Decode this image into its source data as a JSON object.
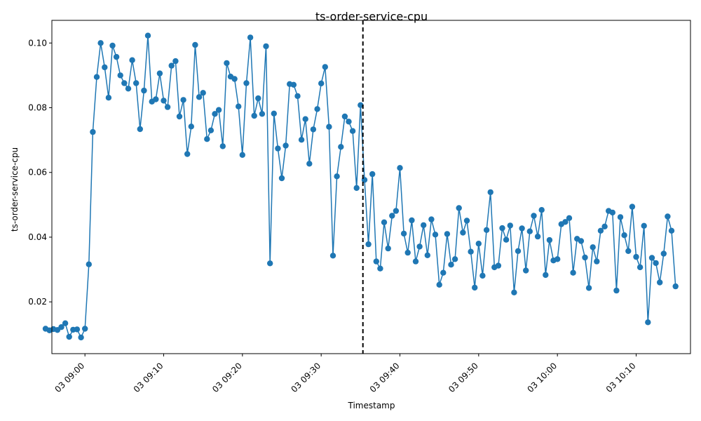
{
  "chart_data": {
    "type": "line",
    "title": "ts-order-service-cpu",
    "xlabel": "Timestamp",
    "ylabel": "ts-order-service-cpu",
    "series_color": "#1f77b4",
    "marker": "circle",
    "grid": false,
    "legend": "none",
    "x_start": "03 08:55",
    "x_interval_minutes": 0.5,
    "ylim": [
      0.004,
      0.107
    ],
    "xlim_minutes": [
      -4.2,
      76.9
    ],
    "x_ticks": [
      {
        "minute": 0,
        "label": "03 09:00"
      },
      {
        "minute": 10,
        "label": "03 09:10"
      },
      {
        "minute": 20,
        "label": "03 09:20"
      },
      {
        "minute": 30,
        "label": "03 09:30"
      },
      {
        "minute": 40,
        "label": "03 09:40"
      },
      {
        "minute": 50,
        "label": "03 09:50"
      },
      {
        "minute": 60,
        "label": "03 10:00"
      },
      {
        "minute": 70,
        "label": "03 10:10"
      }
    ],
    "y_ticks": [
      {
        "value": 0.02,
        "label": "0.02"
      },
      {
        "value": 0.04,
        "label": "0.04"
      },
      {
        "value": 0.06,
        "label": "0.06"
      },
      {
        "value": 0.08,
        "label": "0.08"
      },
      {
        "value": 0.1,
        "label": "0.10"
      }
    ],
    "annotation": {
      "type": "vertical-dashed-line",
      "timestamp": "03 09:35",
      "color": "#000000"
    },
    "values": [
      0.0117,
      0.0112,
      0.0116,
      0.0113,
      0.0122,
      0.0134,
      0.0092,
      0.0114,
      0.0115,
      0.009,
      0.0117,
      0.0316,
      0.0725,
      0.0895,
      0.1,
      0.0925,
      0.0831,
      0.0992,
      0.0957,
      0.09,
      0.0876,
      0.0859,
      0.0947,
      0.0876,
      0.0734,
      0.0853,
      0.1023,
      0.0819,
      0.0826,
      0.0906,
      0.0822,
      0.0802,
      0.093,
      0.0944,
      0.0773,
      0.0824,
      0.0657,
      0.0742,
      0.0994,
      0.0833,
      0.0846,
      0.0703,
      0.073,
      0.0781,
      0.0793,
      0.0681,
      0.0938,
      0.0896,
      0.0889,
      0.0804,
      0.0654,
      0.0876,
      0.1017,
      0.0775,
      0.0829,
      0.0781,
      0.099,
      0.0319,
      0.0782,
      0.0674,
      0.0582,
      0.0683,
      0.0873,
      0.0871,
      0.0836,
      0.0701,
      0.0765,
      0.0627,
      0.0733,
      0.0796,
      0.0875,
      0.0926,
      0.0741,
      0.0343,
      0.0588,
      0.0679,
      0.0773,
      0.0757,
      0.0728,
      0.0552,
      0.0808,
      0.0577,
      0.0378,
      0.0595,
      0.0325,
      0.0303,
      0.0446,
      0.0365,
      0.0466,
      0.0481,
      0.0614,
      0.0411,
      0.0352,
      0.0452,
      0.0325,
      0.0371,
      0.0437,
      0.0344,
      0.0455,
      0.0408,
      0.0253,
      0.029,
      0.041,
      0.0315,
      0.0332,
      0.049,
      0.0414,
      0.0451,
      0.0355,
      0.0244,
      0.038,
      0.0281,
      0.0422,
      0.0539,
      0.0307,
      0.0312,
      0.0428,
      0.0392,
      0.0436,
      0.0229,
      0.0357,
      0.0427,
      0.0297,
      0.0418,
      0.0466,
      0.0402,
      0.0484,
      0.0283,
      0.0391,
      0.0328,
      0.0332,
      0.044,
      0.0447,
      0.0459,
      0.029,
      0.0395,
      0.0388,
      0.0337,
      0.0243,
      0.0369,
      0.0325,
      0.042,
      0.0433,
      0.0481,
      0.0476,
      0.0235,
      0.0462,
      0.0406,
      0.0357,
      0.0494,
      0.0339,
      0.0307,
      0.0435,
      0.0137,
      0.0336,
      0.032,
      0.026,
      0.0349,
      0.0464,
      0.042,
      0.0248
    ]
  }
}
